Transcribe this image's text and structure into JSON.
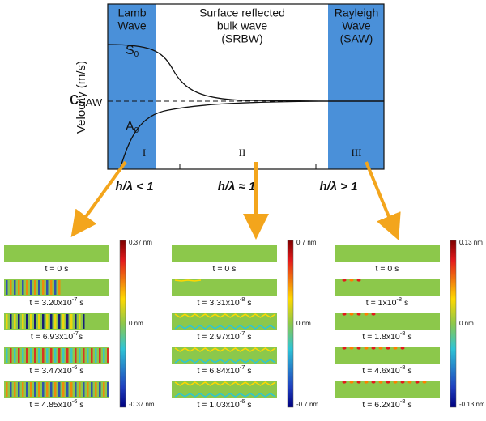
{
  "diagram": {
    "regions": [
      {
        "label": [
          "Lamb",
          "Wave"
        ],
        "numeral": "I",
        "condition": "h/λ < 1"
      },
      {
        "label": [
          "Surface reflected",
          "bulk wave",
          "(SRBW)"
        ],
        "numeral": "II",
        "condition": "h/λ ≈ 1"
      },
      {
        "label": [
          "Rayleigh",
          "Wave",
          "(SAW)"
        ],
        "numeral": "III",
        "condition": "h/λ > 1"
      }
    ],
    "y_axis_label": "Velocity (m/s)",
    "s0": {
      "main": "S",
      "sub": "0"
    },
    "a0": {
      "main": "A",
      "sub": "0"
    },
    "c_saw": {
      "main": "c",
      "sub": "SAW"
    }
  },
  "panels": [
    {
      "scale": {
        "max": "0.37 nm",
        "mid": "0 nm",
        "min": "-0.37 nm"
      },
      "frames": [
        [
          "t = 0 s"
        ],
        [
          "t = 3.20x10",
          "-7",
          " s"
        ],
        [
          "t = 6.93x10",
          "-7",
          "s"
        ],
        [
          "t = 3.47x10",
          "-6",
          " s"
        ],
        [
          "t = 4.85x10",
          "-6",
          " s"
        ]
      ]
    },
    {
      "scale": {
        "max": "0.7 nm",
        "mid": "0 nm",
        "min": "-0.7 nm"
      },
      "frames": [
        [
          "t = 0 s"
        ],
        [
          "t = 3.31x10",
          "-8",
          " s"
        ],
        [
          "t = 2.97x10",
          "-7",
          " s"
        ],
        [
          "t = 6.84x10",
          "-7",
          " s"
        ],
        [
          "t = 1.03x10",
          "-6",
          " s"
        ]
      ]
    },
    {
      "scale": {
        "max": "0.13 nm",
        "mid": "0 nm",
        "min": "-0.13 nm"
      },
      "frames": [
        [
          "t = 0 s"
        ],
        [
          "t = 1x10",
          "-8",
          " s"
        ],
        [
          "t = 1.8x10",
          "-8",
          " s"
        ],
        [
          "t = 4.6x10",
          "-8",
          " s"
        ],
        [
          "t = 6.2x10",
          "-8",
          " s"
        ]
      ]
    }
  ]
}
